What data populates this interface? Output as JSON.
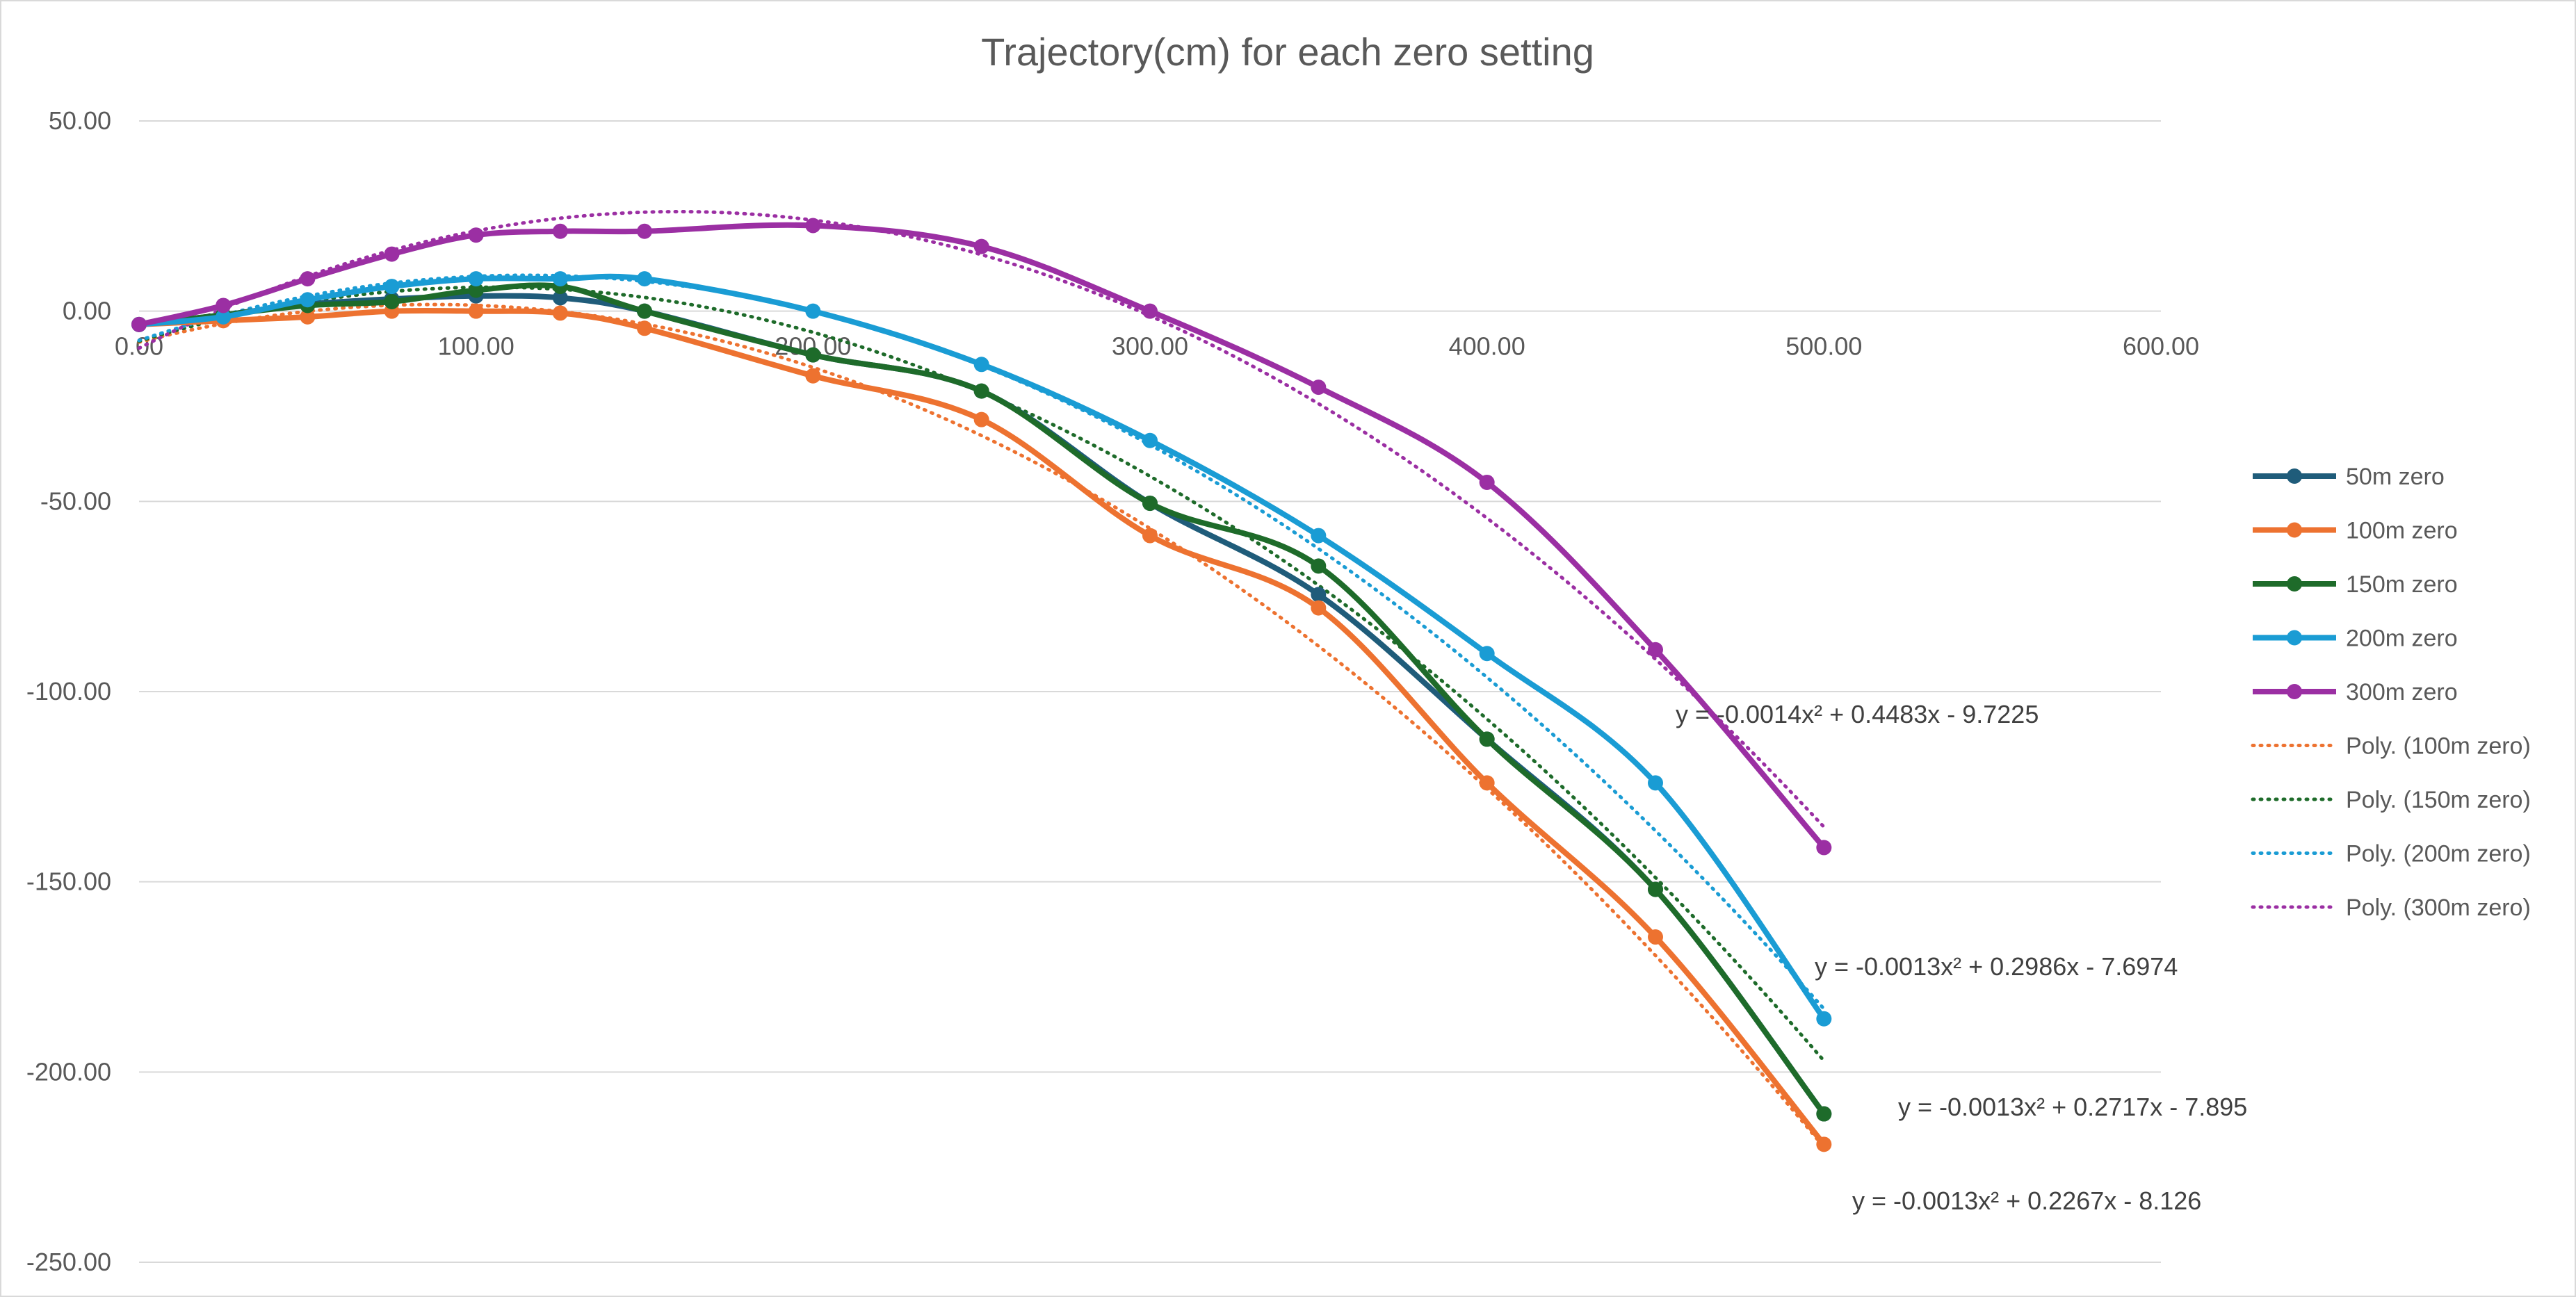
{
  "chart_data": {
    "type": "line",
    "title": "Trajectory(cm) for each zero setting",
    "xlabel": "",
    "ylabel": "",
    "xlim": [
      0,
      600
    ],
    "ylim": [
      -250,
      50
    ],
    "x_ticks": [
      "0.00",
      "100.00",
      "200.00",
      "300.00",
      "400.00",
      "500.00",
      "600.00"
    ],
    "y_ticks": [
      "50.00",
      "0.00",
      "-50.00",
      "-100.00",
      "-150.00",
      "-200.00",
      "-250.00"
    ],
    "grid": "horizontal",
    "legend_position": "right",
    "x": [
      0,
      25,
      50,
      75,
      100,
      125,
      150,
      200,
      250,
      300,
      350,
      400,
      450,
      500
    ],
    "series": [
      {
        "name": "50m zero",
        "color": "#1f5c7a",
        "values": [
          -3.5,
          -1.0,
          1.8,
          3.2,
          4.0,
          3.5,
          0.0,
          -11.5,
          -21.0,
          -50.5,
          -74.5,
          -112.5,
          -152.0,
          -211.0
        ]
      },
      {
        "name": "100m zero",
        "color": "#ed7230",
        "values": [
          -3.5,
          -2.5,
          -1.5,
          0.0,
          0.0,
          -0.5,
          -4.5,
          -17.0,
          -28.5,
          -59.0,
          -78.0,
          -124.0,
          -164.5,
          -219.0
        ]
      },
      {
        "name": "150m zero",
        "color": "#1e6b2a",
        "values": [
          -3.5,
          -1.0,
          1.5,
          2.5,
          5.5,
          6.5,
          0.0,
          -11.5,
          -21.0,
          -50.5,
          -67.0,
          -112.5,
          -152.0,
          -211.0
        ]
      },
      {
        "name": "200m zero",
        "color": "#1a9cd4",
        "values": [
          -3.5,
          -1.5,
          3.0,
          6.5,
          8.5,
          8.5,
          8.5,
          0.0,
          -14.0,
          -34.0,
          -59.0,
          -90.0,
          -124.0,
          -186.0
        ]
      },
      {
        "name": "300m zero",
        "color": "#9b2fa3",
        "values": [
          -3.5,
          1.5,
          8.5,
          15.0,
          20.0,
          21.0,
          21.0,
          22.5,
          17.0,
          0.0,
          -20.0,
          -45.0,
          -89.0,
          -141.0
        ]
      }
    ],
    "trendlines": [
      {
        "name": "Poly. (100m zero)",
        "color": "#ed7230",
        "equation": "y = -0.0013x² + 0.2267x - 8.126"
      },
      {
        "name": "Poly. (150m zero)",
        "color": "#1e6b2a",
        "equation": "y = -0.0013x² + 0.2717x - 7.895"
      },
      {
        "name": "Poly. (200m zero)",
        "color": "#1a9cd4",
        "equation": "y = -0.0013x² + 0.2986x - 7.6974"
      },
      {
        "name": "Poly. (300m zero)",
        "color": "#9b2fa3",
        "equation": "y = -0.0014x² + 0.4483x - 9.7225"
      }
    ]
  }
}
